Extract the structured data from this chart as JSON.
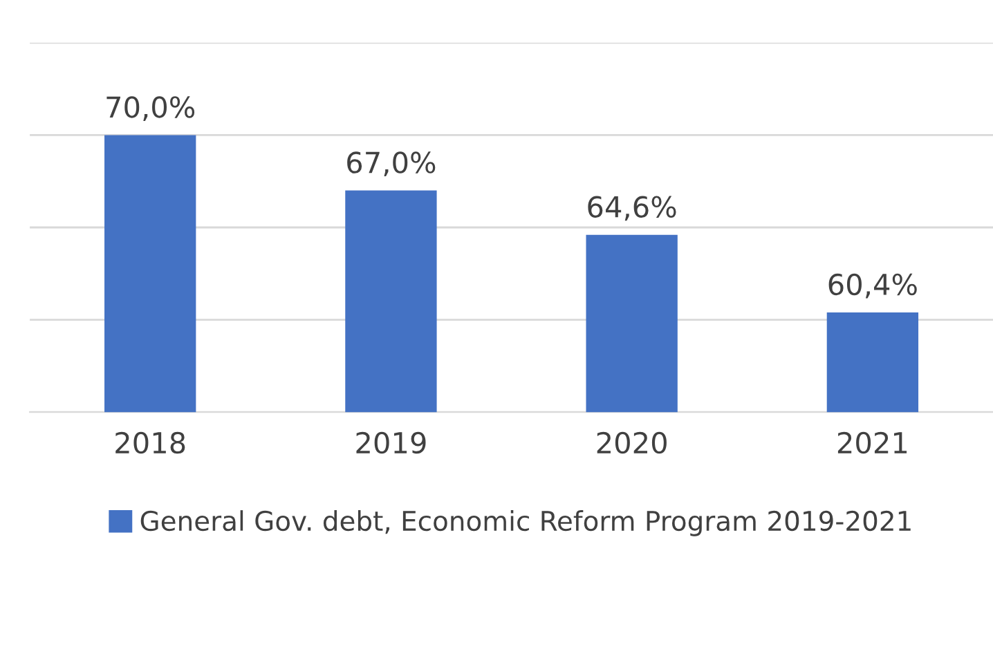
{
  "chart_data": {
    "type": "bar",
    "categories": [
      "2018",
      "2019",
      "2020",
      "2021"
    ],
    "series": [
      {
        "name": "General Gov. debt, Economic Reform Program 2019-2021",
        "color": "#4472c4",
        "values": [
          70.0,
          67.0,
          64.6,
          60.4
        ],
        "value_labels": [
          "70,0%",
          "67,0%",
          "64,6%",
          "60,4%"
        ]
      }
    ],
    "ylim": [
      55,
      75
    ],
    "yticks": [
      {
        "value": 55,
        "label": null
      },
      {
        "value": 60,
        "label": null
      },
      {
        "value": 65,
        "label": null
      },
      {
        "value": 70,
        "label": null
      },
      {
        "value": 75,
        "label": null
      }
    ],
    "grid": "y",
    "legend": "bottom"
  }
}
